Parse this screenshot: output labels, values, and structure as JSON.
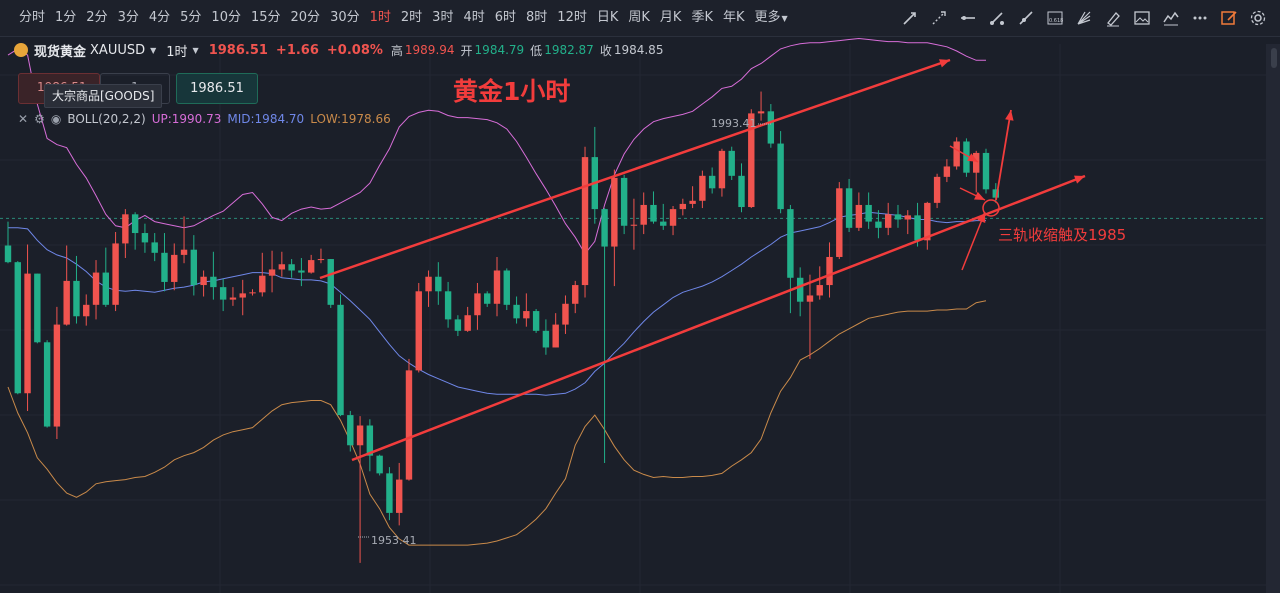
{
  "toolbar": {
    "periods": [
      "分时",
      "1分",
      "2分",
      "3分",
      "4分",
      "5分",
      "10分",
      "15分",
      "20分",
      "30分",
      "1时",
      "2时",
      "3时",
      "4时",
      "6时",
      "8时",
      "12时",
      "日K",
      "周K",
      "月K",
      "季K",
      "年K"
    ],
    "active_period": "1时",
    "more_label": "更多",
    "tools": [
      "trend-line-icon",
      "ray-line-icon",
      "horizontal-line-icon",
      "segment-icon",
      "extended-line-icon",
      "fibonacci-icon",
      "fan-icon",
      "brush-icon",
      "image-icon",
      "indicator-icon",
      "more-dots-icon",
      "edit-icon",
      "settings-icon"
    ]
  },
  "symbol": {
    "name": "现货黄金",
    "code": "XAUUSD",
    "interval": "1时",
    "price": "1986.51",
    "change": "+1.66",
    "change_pct": "+0.08%",
    "high_label": "高",
    "high": "1989.94",
    "open_label": "开",
    "open": "1984.79",
    "low_label": "低",
    "low": "1982.87",
    "close_label": "收",
    "close": "1984.85"
  },
  "trade": {
    "sell_price": "1986.51",
    "qty": "1",
    "buy_price": "1986.51",
    "tooltip": "大宗商品[GOODS]"
  },
  "indicator": {
    "name": "BOLL(20,2,2)",
    "up": "UP:1990.73",
    "mid": "MID:1984.70",
    "low": "LOW:1978.66"
  },
  "annotations": {
    "title": "黄金1小时",
    "note": "三轨收缩触及1985",
    "high_mark": "1993.41",
    "low_mark": "1953.41"
  },
  "colors": {
    "up": "#f0544f",
    "down": "#22b08a",
    "boll_up": "#d76dd8",
    "boll_mid": "#6f87e8",
    "boll_low": "#c98a4a",
    "annotation": "#f23c3c",
    "background": "#1b1f29"
  },
  "chart_data": {
    "type": "candlestick",
    "interval": "1h",
    "candles_ohlc": [
      [
        1983.9,
        1986.2,
        1982.2,
        1982.3
      ],
      [
        1982.3,
        1982.4,
        1969.6,
        1969.7
      ],
      [
        1969.7,
        1984.0,
        1968.0,
        1981.2
      ],
      [
        1981.2,
        1981.2,
        1974.5,
        1974.6
      ],
      [
        1974.6,
        1974.8,
        1966.4,
        1966.5
      ],
      [
        1966.5,
        1978.0,
        1965.3,
        1976.3
      ],
      [
        1976.3,
        1983.9,
        1976.2,
        1980.5
      ],
      [
        1980.5,
        1982.9,
        1976.4,
        1977.1
      ],
      [
        1977.1,
        1979.2,
        1976.2,
        1978.2
      ],
      [
        1978.2,
        1982.5,
        1976.8,
        1981.3
      ],
      [
        1981.3,
        1983.7,
        1978.0,
        1978.2
      ],
      [
        1978.2,
        1985.2,
        1977.6,
        1984.1
      ],
      [
        1984.1,
        1987.4,
        1982.7,
        1986.9
      ],
      [
        1986.9,
        1987.1,
        1983.5,
        1985.1
      ],
      [
        1985.1,
        1986.0,
        1983.2,
        1984.2
      ],
      [
        1984.2,
        1985.1,
        1982.4,
        1983.2
      ],
      [
        1983.2,
        1985.1,
        1979.5,
        1980.4
      ],
      [
        1980.4,
        1984.1,
        1979.6,
        1983.0
      ],
      [
        1983.0,
        1986.7,
        1982.2,
        1983.5
      ],
      [
        1983.5,
        1984.9,
        1979.1,
        1980.1
      ],
      [
        1980.1,
        1981.5,
        1979.0,
        1980.9
      ],
      [
        1980.9,
        1983.3,
        1978.7,
        1979.9
      ],
      [
        1979.9,
        1980.7,
        1977.6,
        1978.7
      ],
      [
        1978.7,
        1979.9,
        1978.1,
        1978.9
      ],
      [
        1978.9,
        1980.6,
        1977.2,
        1979.3
      ],
      [
        1979.3,
        1979.7,
        1979.1,
        1979.4
      ],
      [
        1979.4,
        1983.2,
        1979.0,
        1981.0
      ],
      [
        1981.0,
        1983.4,
        1979.4,
        1981.6
      ],
      [
        1981.6,
        1983.3,
        1980.9,
        1982.1
      ],
      [
        1982.1,
        1982.6,
        1980.8,
        1981.5
      ],
      [
        1981.5,
        1982.7,
        1980.0,
        1981.3
      ],
      [
        1981.3,
        1983.0,
        1981.2,
        1982.5
      ],
      [
        1982.5,
        1983.6,
        1982.2,
        1982.6
      ],
      [
        1982.6,
        1982.6,
        1977.9,
        1978.2
      ],
      [
        1978.2,
        1979.2,
        1967.5,
        1967.6
      ],
      [
        1967.6,
        1968.0,
        1964.1,
        1964.7
      ],
      [
        1964.7,
        1967.5,
        1953.4,
        1966.6
      ],
      [
        1966.6,
        1967.2,
        1962.2,
        1963.7
      ],
      [
        1963.7,
        1963.8,
        1961.8,
        1962.0
      ],
      [
        1962.0,
        1962.6,
        1957.5,
        1958.2
      ],
      [
        1958.2,
        1963.0,
        1957.0,
        1961.4
      ],
      [
        1961.4,
        1973.0,
        1961.3,
        1971.9
      ],
      [
        1971.9,
        1980.3,
        1971.7,
        1979.5
      ],
      [
        1979.5,
        1981.5,
        1978.0,
        1980.9
      ],
      [
        1980.9,
        1982.3,
        1978.2,
        1979.5
      ],
      [
        1979.5,
        1980.4,
        1976.0,
        1976.8
      ],
      [
        1976.8,
        1977.2,
        1975.2,
        1975.7
      ],
      [
        1975.7,
        1978.0,
        1975.6,
        1977.2
      ],
      [
        1977.2,
        1980.3,
        1975.8,
        1979.3
      ],
      [
        1979.3,
        1979.5,
        1978.0,
        1978.3
      ],
      [
        1978.3,
        1982.8,
        1977.1,
        1981.5
      ],
      [
        1981.5,
        1981.7,
        1977.7,
        1978.2
      ],
      [
        1978.2,
        1979.0,
        1976.4,
        1976.9
      ],
      [
        1976.9,
        1979.3,
        1976.1,
        1977.6
      ],
      [
        1977.6,
        1977.8,
        1975.5,
        1975.7
      ],
      [
        1975.7,
        1976.8,
        1973.4,
        1974.1
      ],
      [
        1974.1,
        1977.4,
        1974.1,
        1976.3
      ],
      [
        1976.3,
        1979.1,
        1975.4,
        1978.3
      ],
      [
        1978.3,
        1980.5,
        1977.4,
        1980.1
      ],
      [
        1980.1,
        1993.4,
        1978.9,
        1992.4
      ],
      [
        1992.4,
        1995.3,
        1986.0,
        1987.4
      ],
      [
        1987.4,
        1987.5,
        1963.0,
        1983.8
      ],
      [
        1983.8,
        1991.2,
        1980.0,
        1990.4
      ],
      [
        1990.4,
        1990.7,
        1985.0,
        1985.8
      ],
      [
        1985.8,
        1988.4,
        1983.5,
        1985.9
      ],
      [
        1985.9,
        1989.0,
        1985.0,
        1987.8
      ],
      [
        1987.8,
        1989.1,
        1986.0,
        1986.2
      ],
      [
        1986.2,
        1987.9,
        1985.4,
        1985.8
      ],
      [
        1985.8,
        1987.7,
        1984.9,
        1987.4
      ],
      [
        1987.4,
        1988.4,
        1986.8,
        1987.9
      ],
      [
        1987.9,
        1989.6,
        1987.5,
        1988.2
      ],
      [
        1988.2,
        1991.1,
        1987.5,
        1990.6
      ],
      [
        1990.6,
        1991.4,
        1988.9,
        1989.4
      ],
      [
        1989.4,
        1993.2,
        1988.6,
        1993.0
      ],
      [
        1993.0,
        1993.4,
        1990.2,
        1990.6
      ],
      [
        1990.6,
        1991.8,
        1987.1,
        1987.6
      ],
      [
        1987.6,
        1997.0,
        1987.5,
        1996.6
      ],
      [
        1996.6,
        1998.7,
        1995.9,
        1996.8
      ],
      [
        1996.8,
        1997.5,
        1993.3,
        1993.7
      ],
      [
        1993.7,
        1994.9,
        1987.0,
        1987.4
      ],
      [
        1987.4,
        1987.8,
        1977.4,
        1980.8
      ],
      [
        1980.8,
        1981.8,
        1977.1,
        1978.5
      ],
      [
        1978.5,
        1981.1,
        1973.0,
        1979.1
      ],
      [
        1979.1,
        1981.9,
        1978.7,
        1980.1
      ],
      [
        1980.1,
        1984.2,
        1978.9,
        1982.8
      ],
      [
        1982.8,
        1990.0,
        1982.6,
        1989.4
      ],
      [
        1989.4,
        1990.3,
        1985.2,
        1985.6
      ],
      [
        1985.6,
        1989.0,
        1985.3,
        1987.8
      ],
      [
        1987.8,
        1989.0,
        1985.5,
        1986.2
      ],
      [
        1986.2,
        1987.3,
        1984.6,
        1985.6
      ],
      [
        1985.6,
        1988.0,
        1984.9,
        1986.9
      ],
      [
        1986.9,
        1987.8,
        1985.6,
        1986.4
      ],
      [
        1986.4,
        1987.3,
        1985.0,
        1986.8
      ],
      [
        1986.8,
        1988.0,
        1983.8,
        1984.4
      ],
      [
        1984.4,
        1988.1,
        1983.5,
        1988.0
      ],
      [
        1988.0,
        1990.8,
        1987.5,
        1990.5
      ],
      [
        1990.5,
        1992.2,
        1990.0,
        1991.5
      ],
      [
        1991.5,
        1994.3,
        1991.2,
        1993.9
      ],
      [
        1993.9,
        1994.2,
        1990.5,
        1990.9
      ],
      [
        1990.9,
        1993.0,
        1989.0,
        1992.8
      ],
      [
        1992.8,
        1993.2,
        1988.9,
        1989.3
      ],
      [
        1989.3,
        1989.9,
        1988.0,
        1988.5
      ]
    ],
    "boll_up_series": [
      2002.2,
      2002.8,
      2002.2,
      1997.5,
      1994.2,
      1993.6,
      1993.3,
      1991.7,
      1990.4,
      1988.7,
      1986.9,
      1985.8,
      1985.6,
      1986.3,
      1986.8,
      1986.2,
      1986.0,
      1985.8,
      1985.6,
      1985.8,
      1986.3,
      1986.8,
      1987.2,
      1988.0,
      1988.8,
      1989.0,
      1987.9,
      1986.6,
      1986.3,
      1987.0,
      1987.4,
      1987.6,
      1987.4,
      1987.5,
      1988.0,
      1988.5,
      1989.0,
      1989.9,
      1991.6,
      1993.2,
      1995.3,
      1996.3,
      1996.7,
      1996.9,
      1996.8,
      1996.4,
      1996.2,
      1996.2,
      1996.1,
      1996.0,
      1995.7,
      1995.1,
      1993.9,
      1992.4,
      1990.8,
      1989.3,
      1987.7,
      1986.0,
      1984.7,
      1983.1,
      1984.3,
      1987.8,
      1990.7,
      1992.7,
      1994.1,
      1995.1,
      1995.8,
      1996.1,
      1996.3,
      1996.5,
      1996.8,
      1997.5,
      1998.2,
      1999.0,
      1999.2,
      1999.9,
      2000.9,
      2001.4,
      2002.1,
      2002.8,
      2003.1,
      2003.3,
      2003.4,
      2003.4,
      2003.5,
      2003.6,
      2003.7,
      2003.8,
      2003.7,
      2003.6,
      2003.5,
      2003.5,
      2003.4,
      2003.4,
      2003.4,
      2003.2,
      2003.0,
      2002.6,
      2002.1,
      2001.7,
      2001.7
    ],
    "boll_mid_series": [
      1985.6,
      1985.6,
      1985.5,
      1984.4,
      1983.5,
      1983.0,
      1982.7,
      1982.1,
      1981.4,
      1980.5,
      1979.9,
      1979.6,
      1979.5,
      1979.6,
      1979.5,
      1979.4,
      1979.6,
      1979.8,
      1979.9,
      1980.1,
      1980.4,
      1980.5,
      1980.7,
      1980.9,
      1981.1,
      1981.3,
      1981.3,
      1981.2,
      1980.8,
      1980.7,
      1980.6,
      1980.6,
      1980.5,
      1980.2,
      1979.4,
      1978.6,
      1977.7,
      1976.8,
      1975.6,
      1974.4,
      1973.3,
      1972.6,
      1972.0,
      1971.5,
      1971.1,
      1970.7,
      1970.3,
      1970.1,
      1969.9,
      1969.7,
      1969.6,
      1969.6,
      1969.6,
      1969.6,
      1969.6,
      1969.5,
      1969.6,
      1969.7,
      1970.1,
      1970.7,
      1971.8,
      1972.6,
      1973.6,
      1974.5,
      1975.6,
      1976.6,
      1977.5,
      1978.2,
      1978.9,
      1979.4,
      1979.7,
      1980.0,
      1980.4,
      1980.9,
      1981.5,
      1982.1,
      1982.8,
      1983.4,
      1984.0,
      1984.7,
      1985.1,
      1985.3,
      1985.5,
      1985.7,
      1986.1,
      1986.6,
      1986.8,
      1986.9,
      1987.1,
      1987.0,
      1986.9,
      1986.8,
      1986.6,
      1986.4,
      1986.4,
      1986.2,
      1986.1,
      1986.2,
      1986.2,
      1986.3,
      1986.3
    ],
    "boll_low_series": [
      1970.3,
      1967.8,
      1965.9,
      1963.5,
      1962.4,
      1961.1,
      1960.1,
      1959.7,
      1960.2,
      1961.0,
      1961.2,
      1961.3,
      1961.4,
      1961.6,
      1961.7,
      1962.1,
      1962.6,
      1963.3,
      1963.7,
      1964.0,
      1964.5,
      1965.2,
      1965.7,
      1966.0,
      1966.2,
      1966.4,
      1967.2,
      1968.0,
      1968.6,
      1968.8,
      1968.9,
      1969.0,
      1969.0,
      1968.6,
      1967.1,
      1965.1,
      1962.9,
      1960.0,
      1958.6,
      1956.8,
      1955.7,
      1955.1,
      1955.1,
      1955.1,
      1955.1,
      1955.1,
      1955.1,
      1955.1,
      1955.2,
      1955.3,
      1955.5,
      1955.8,
      1956.1,
      1956.8,
      1957.6,
      1958.6,
      1960.1,
      1961.5,
      1964.7,
      1966.5,
      1967.6,
      1966.2,
      1964.6,
      1963.3,
      1962.3,
      1961.9,
      1961.6,
      1961.7,
      1961.6,
      1961.6,
      1961.7,
      1961.7,
      1961.8,
      1962.0,
      1962.7,
      1963.3,
      1964.0,
      1965.3,
      1967.8,
      1969.9,
      1971.2,
      1972.9,
      1973.4,
      1974.0,
      1974.7,
      1975.4,
      1975.9,
      1976.4,
      1976.9,
      1977.1,
      1977.3,
      1977.5,
      1977.6,
      1977.6,
      1977.6,
      1977.7,
      1977.7,
      1977.8,
      1977.8,
      1978.4,
      1978.6
    ],
    "price_range": [
      1950.5,
      2007.5
    ],
    "current_price_line": 1986.51,
    "high_mark": 1993.41,
    "low_mark": 1953.41
  }
}
